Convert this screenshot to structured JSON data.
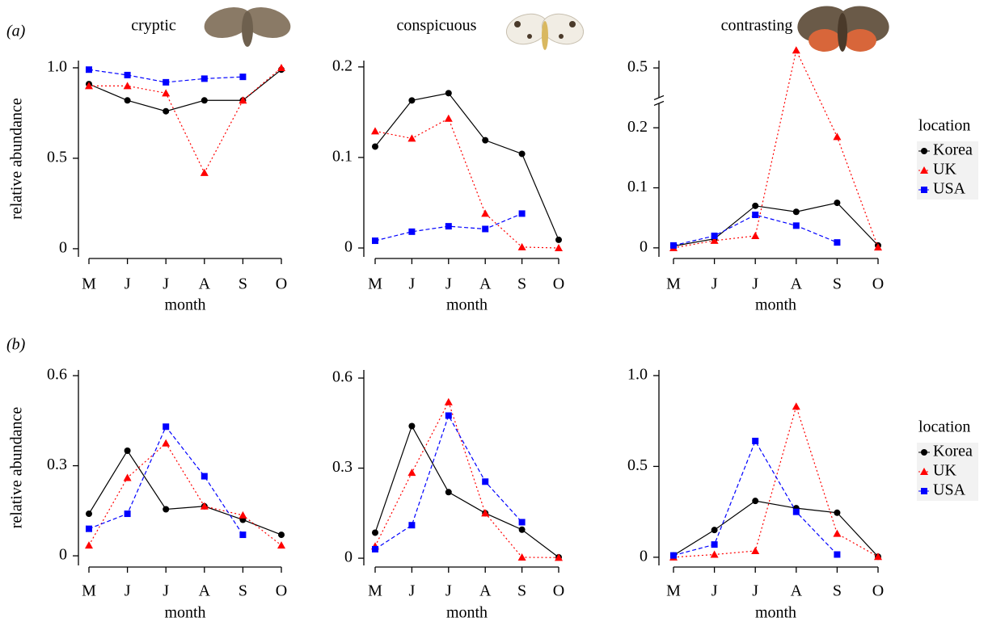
{
  "chart_data": [
    {
      "type": "line",
      "panel_label": "(a)",
      "title": "cryptic",
      "ylabel": "relative abundance",
      "xlabel": "month",
      "categories": [
        "M",
        "J",
        "J",
        "A",
        "S",
        "O"
      ],
      "ylim": [
        -0.045,
        1.04
      ],
      "yticks": [
        0,
        0.5,
        {
          "value": 1,
          "label": "1.0"
        }
      ],
      "series": [
        {
          "color": "#000000",
          "marker": "circle",
          "line_style": "solid",
          "values": [
            0.91,
            0.82,
            0.76,
            0.82,
            0.82,
            0.99
          ]
        },
        {
          "color": "#ff0000",
          "marker": "triangle",
          "line_style": "dotted",
          "values": [
            0.9,
            0.9,
            0.86,
            0.42,
            0.82,
            1.0
          ]
        },
        {
          "color": "#0000ff",
          "marker": "square",
          "line_style": "dashed",
          "values": [
            0.99,
            0.96,
            0.92,
            0.94,
            0.95,
            null
          ]
        }
      ]
    },
    {
      "type": "line",
      "title": "conspicuous",
      "xlabel": "month",
      "categories": [
        "M",
        "J",
        "J",
        "A",
        "S",
        "O"
      ],
      "ylim": [
        -0.0098,
        0.207
      ],
      "yticks": [
        0,
        0.1,
        0.2
      ],
      "series": [
        {
          "color": "#000000",
          "marker": "circle",
          "line_style": "solid",
          "values": [
            0.112,
            0.163,
            0.171,
            0.119,
            0.104,
            0.009
          ]
        },
        {
          "color": "#ff0000",
          "marker": "triangle",
          "line_style": "dotted",
          "values": [
            0.129,
            0.121,
            0.143,
            0.038,
            0.001,
            0
          ]
        },
        {
          "color": "#0000ff",
          "marker": "square",
          "line_style": "dashed",
          "values": [
            0.008,
            0.018,
            0.024,
            0.021,
            0.038,
            null
          ]
        }
      ]
    },
    {
      "type": "line",
      "title": "contrasting",
      "xlabel": "month",
      "legend_title": "location",
      "categories": [
        "M",
        "J",
        "J",
        "A",
        "S",
        "O"
      ],
      "ylim": [
        -0.015,
        0.5125
      ],
      "ybreak": [
        0.24,
        0.45
      ],
      "yticks": [
        0,
        0.1,
        0.2,
        0.5
      ],
      "series": [
        {
          "name": "Korea",
          "color": "#000000",
          "marker": "circle",
          "line_style": "solid",
          "values": [
            0.003,
            0.015,
            0.07,
            0.06,
            0.075,
            0.004
          ]
        },
        {
          "name": "UK",
          "color": "#ff0000",
          "marker": "triangle",
          "line_style": "dotted",
          "values": [
            0,
            0.012,
            0.02,
            0.53,
            0.185,
            0.001
          ]
        },
        {
          "name": "USA",
          "color": "#0000ff",
          "marker": "square",
          "line_style": "dashed",
          "values": [
            0.004,
            0.02,
            0.055,
            0.037,
            0.009,
            null
          ]
        }
      ]
    },
    {
      "type": "line",
      "panel_label": "(b)",
      "ylabel": "relative abundance",
      "xlabel": "month",
      "categories": [
        "M",
        "J",
        "J",
        "A",
        "S",
        "O"
      ],
      "ylim": [
        -0.032,
        0.619
      ],
      "yticks": [
        0,
        0.3,
        0.6
      ],
      "series": [
        {
          "color": "#000000",
          "marker": "circle",
          "line_style": "solid",
          "values": [
            0.14,
            0.35,
            0.155,
            0.165,
            0.12,
            0.07
          ]
        },
        {
          "color": "#ff0000",
          "marker": "triangle",
          "line_style": "dotted",
          "values": [
            0.035,
            0.26,
            0.375,
            0.165,
            0.135,
            0.035
          ]
        },
        {
          "color": "#0000ff",
          "marker": "square",
          "line_style": "dashed",
          "values": [
            0.09,
            0.14,
            0.43,
            0.265,
            0.07,
            null
          ]
        }
      ]
    },
    {
      "type": "line",
      "xlabel": "month",
      "categories": [
        "M",
        "J",
        "J",
        "A",
        "S",
        "O"
      ],
      "ylim": [
        -0.024,
        0.627
      ],
      "yticks": [
        0,
        0.3,
        0.6
      ],
      "series": [
        {
          "color": "#000000",
          "marker": "circle",
          "line_style": "solid",
          "values": [
            0.085,
            0.44,
            0.22,
            0.15,
            0.095,
            0.003
          ]
        },
        {
          "color": "#ff0000",
          "marker": "triangle",
          "line_style": "dotted",
          "values": [
            0.04,
            0.285,
            0.52,
            0.15,
            0.003,
            0.002
          ]
        },
        {
          "color": "#0000ff",
          "marker": "square",
          "line_style": "dashed",
          "values": [
            0.03,
            0.11,
            0.475,
            0.255,
            0.12,
            null
          ]
        }
      ]
    },
    {
      "type": "line",
      "xlabel": "month",
      "legend_title": "location",
      "categories": [
        "M",
        "J",
        "J",
        "A",
        "S",
        "O"
      ],
      "ylim": [
        -0.045,
        1.031
      ],
      "yticks": [
        0,
        0.5,
        {
          "value": 1,
          "label": "1.0"
        }
      ],
      "series": [
        {
          "name": "Korea",
          "color": "#000000",
          "marker": "circle",
          "line_style": "solid",
          "values": [
            0.01,
            0.15,
            0.31,
            0.27,
            0.245,
            0.003
          ]
        },
        {
          "name": "UK",
          "color": "#ff0000",
          "marker": "triangle",
          "line_style": "dotted",
          "values": [
            0,
            0.015,
            0.035,
            0.83,
            0.13,
            0.003
          ]
        },
        {
          "name": "USA",
          "color": "#0000ff",
          "marker": "square",
          "line_style": "dashed",
          "values": [
            0.01,
            0.07,
            0.64,
            0.25,
            0.015,
            null
          ]
        }
      ]
    }
  ]
}
